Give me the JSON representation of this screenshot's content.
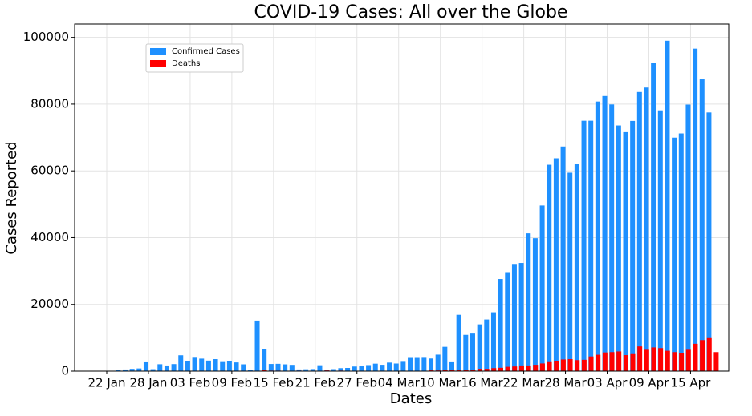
{
  "chart_data": {
    "type": "bar",
    "title": "COVID-19 Cases: All over the Globe",
    "x_label": "Dates",
    "y_label": "Cases Reported",
    "categories": [
      "22 Jan",
      null,
      null,
      null,
      null,
      null,
      "28 Jan",
      null,
      null,
      null,
      null,
      null,
      "03 Feb",
      null,
      null,
      null,
      null,
      null,
      "09 Feb",
      null,
      null,
      null,
      null,
      null,
      "15 Feb",
      null,
      null,
      null,
      null,
      null,
      "21 Feb",
      null,
      null,
      null,
      null,
      null,
      "27 Feb",
      null,
      null,
      null,
      null,
      null,
      "04 Mar",
      null,
      null,
      null,
      null,
      null,
      "10 Mar",
      null,
      null,
      null,
      null,
      null,
      "16 Mar",
      null,
      null,
      null,
      null,
      null,
      "22 Mar",
      null,
      null,
      null,
      null,
      null,
      "28 Mar",
      null,
      null,
      null,
      null,
      null,
      "03 Apr",
      null,
      null,
      null,
      null,
      null,
      "09 Apr",
      null,
      null,
      null,
      null,
      null,
      "15 Apr",
      null,
      null,
      null
    ],
    "series": [
      {
        "name": "Confirmed Cases",
        "color": "#1e90ff",
        "values": [
          null,
          99,
          287,
          493,
          684,
          809,
          2651,
          588,
          2068,
          1693,
          2111,
          4749,
          3094,
          4011,
          3743,
          3159,
          3597,
          2729,
          3030,
          2612,
          2040,
          419,
          15152,
          6517,
          2145,
          2194,
          2033,
          1880,
          503,
          558,
          621,
          1764,
          377,
          598,
          891,
          959,
          1380,
          1435,
          1809,
          2241,
          1902,
          2562,
          2283,
          2792,
          3958,
          3957,
          3991,
          3777,
          4934,
          7287,
          2663,
          16883,
          10868,
          11257,
          14019,
          15472,
          17637,
          27612,
          29664,
          32125,
          32414,
          41283,
          39837,
          49622,
          61836,
          63770,
          67304,
          59458,
          62119,
          75018,
          75027,
          80780,
          82429,
          79908,
          73607,
          71597,
          74964,
          83631,
          84970,
          92284,
          78131,
          99000,
          69954,
          71210,
          79862,
          96632,
          87420,
          77500
        ]
      },
      {
        "name": "Deaths",
        "color": "#ff0000",
        "values": [
          null,
          1,
          8,
          16,
          14,
          26,
          49,
          2,
          38,
          42,
          46,
          103,
          64,
          66,
          72,
          70,
          85,
          87,
          100,
          107,
          100,
          5,
          253,
          152,
          143,
          104,
          98,
          139,
          115,
          125,
          4,
          207,
          11,
          160,
          79,
          62,
          44,
          58,
          66,
          53,
          67,
          84,
          96,
          104,
          102,
          98,
          231,
          203,
          274,
          308,
          336,
          403,
          400,
          700,
          700,
          900,
          1000,
          1300,
          1400,
          1700,
          1700,
          1900,
          2300,
          2700,
          2900,
          3500,
          3600,
          3300,
          3400,
          4400,
          4900,
          5600,
          5700,
          5900,
          4800,
          5100,
          7400,
          6400,
          7100,
          6900,
          6100,
          5700,
          5400,
          6400,
          8200,
          9300,
          9900,
          5700
        ]
      }
    ],
    "ylim": [
      0,
      104000
    ],
    "yticks": [
      0,
      20000,
      40000,
      60000,
      80000,
      100000
    ],
    "grid": true,
    "legend": "upper left"
  }
}
